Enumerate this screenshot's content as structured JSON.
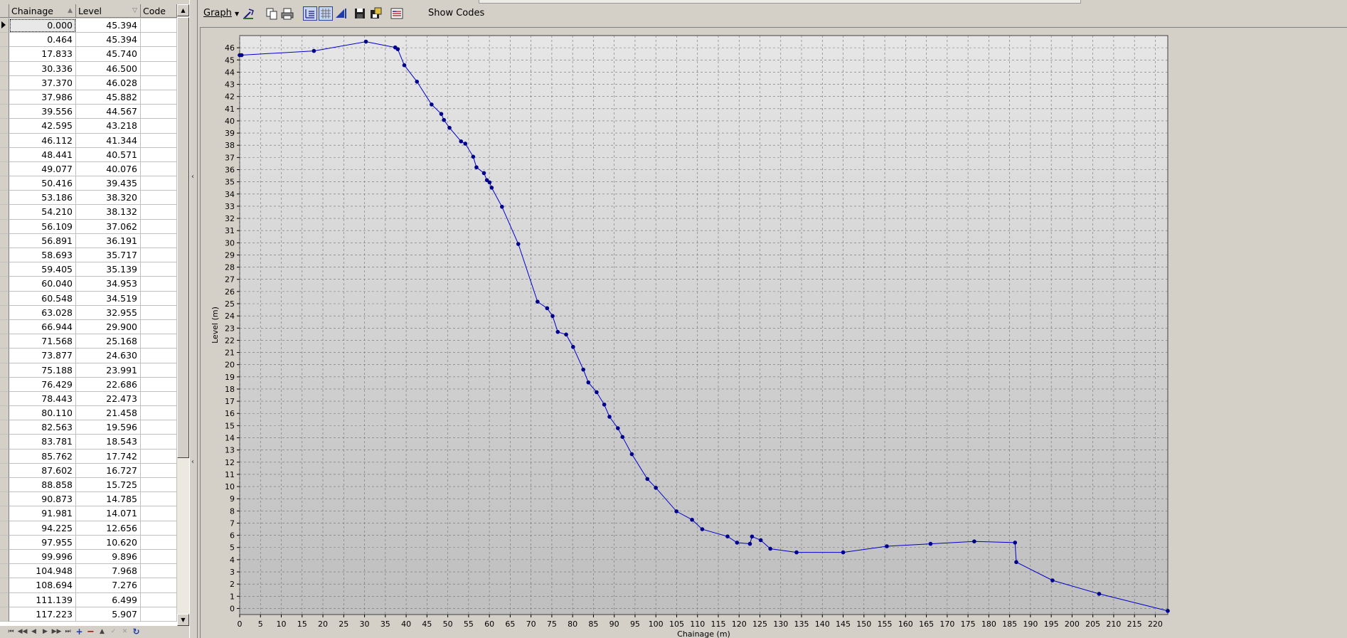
{
  "grid": {
    "columns": {
      "chainage": "Chainage",
      "level": "Level",
      "code": "Code"
    },
    "sort_glyphs": {
      "chainage": "▲",
      "level": "▽"
    },
    "rows": [
      {
        "chainage": "0.000",
        "level": "45.394",
        "code": ""
      },
      {
        "chainage": "0.464",
        "level": "45.394",
        "code": ""
      },
      {
        "chainage": "17.833",
        "level": "45.740",
        "code": ""
      },
      {
        "chainage": "30.336",
        "level": "46.500",
        "code": ""
      },
      {
        "chainage": "37.370",
        "level": "46.028",
        "code": ""
      },
      {
        "chainage": "37.986",
        "level": "45.882",
        "code": ""
      },
      {
        "chainage": "39.556",
        "level": "44.567",
        "code": ""
      },
      {
        "chainage": "42.595",
        "level": "43.218",
        "code": ""
      },
      {
        "chainage": "46.112",
        "level": "41.344",
        "code": ""
      },
      {
        "chainage": "48.441",
        "level": "40.571",
        "code": ""
      },
      {
        "chainage": "49.077",
        "level": "40.076",
        "code": ""
      },
      {
        "chainage": "50.416",
        "level": "39.435",
        "code": ""
      },
      {
        "chainage": "53.186",
        "level": "38.320",
        "code": ""
      },
      {
        "chainage": "54.210",
        "level": "38.132",
        "code": ""
      },
      {
        "chainage": "56.109",
        "level": "37.062",
        "code": ""
      },
      {
        "chainage": "56.891",
        "level": "36.191",
        "code": ""
      },
      {
        "chainage": "58.693",
        "level": "35.717",
        "code": ""
      },
      {
        "chainage": "59.405",
        "level": "35.139",
        "code": ""
      },
      {
        "chainage": "60.040",
        "level": "34.953",
        "code": ""
      },
      {
        "chainage": "60.548",
        "level": "34.519",
        "code": ""
      },
      {
        "chainage": "63.028",
        "level": "32.955",
        "code": ""
      },
      {
        "chainage": "66.944",
        "level": "29.900",
        "code": ""
      },
      {
        "chainage": "71.568",
        "level": "25.168",
        "code": ""
      },
      {
        "chainage": "73.877",
        "level": "24.630",
        "code": ""
      },
      {
        "chainage": "75.188",
        "level": "23.991",
        "code": ""
      },
      {
        "chainage": "76.429",
        "level": "22.686",
        "code": ""
      },
      {
        "chainage": "78.443",
        "level": "22.473",
        "code": ""
      },
      {
        "chainage": "80.110",
        "level": "21.458",
        "code": ""
      },
      {
        "chainage": "82.563",
        "level": "19.596",
        "code": ""
      },
      {
        "chainage": "83.781",
        "level": "18.543",
        "code": ""
      },
      {
        "chainage": "85.762",
        "level": "17.742",
        "code": ""
      },
      {
        "chainage": "87.602",
        "level": "16.727",
        "code": ""
      },
      {
        "chainage": "88.858",
        "level": "15.725",
        "code": ""
      },
      {
        "chainage": "90.873",
        "level": "14.785",
        "code": ""
      },
      {
        "chainage": "91.981",
        "level": "14.071",
        "code": ""
      },
      {
        "chainage": "94.225",
        "level": "12.656",
        "code": ""
      },
      {
        "chainage": "97.955",
        "level": "10.620",
        "code": ""
      },
      {
        "chainage": "99.996",
        "level": "9.896",
        "code": ""
      },
      {
        "chainage": "104.948",
        "level": "7.968",
        "code": ""
      },
      {
        "chainage": "108.694",
        "level": "7.276",
        "code": ""
      },
      {
        "chainage": "111.139",
        "level": "6.499",
        "code": ""
      },
      {
        "chainage": "117.223",
        "level": "5.907",
        "code": ""
      }
    ]
  },
  "toolbar": {
    "graph_label": "Graph",
    "show_codes_label": "Show Codes"
  },
  "nav_icons": [
    "first-icon",
    "prev-page-icon",
    "prev-icon",
    "next-icon",
    "next-page-icon",
    "last-icon",
    "add-icon",
    "delete-icon",
    "edit-icon",
    "post-icon",
    "cancel-icon",
    "refresh-icon"
  ],
  "colors": {
    "series": "#0000cc",
    "marker": "#00008b",
    "plot_bg_top": "#e6e6e6",
    "plot_bg_bottom": "#bfbfbf"
  },
  "chart_data": {
    "type": "line",
    "xlabel": "Chainage (m)",
    "ylabel": "Level (m)",
    "xlim": [
      0,
      223
    ],
    "ylim": [
      -0.5,
      47
    ],
    "x_ticks": [
      0,
      5,
      10,
      15,
      20,
      25,
      30,
      35,
      40,
      45,
      50,
      55,
      60,
      65,
      70,
      75,
      80,
      85,
      90,
      95,
      100,
      105,
      110,
      115,
      120,
      125,
      130,
      135,
      140,
      145,
      150,
      155,
      160,
      165,
      170,
      175,
      180,
      185,
      190,
      195,
      200,
      205,
      210,
      215,
      220
    ],
    "y_ticks": [
      0,
      1,
      2,
      3,
      4,
      5,
      6,
      7,
      8,
      9,
      10,
      11,
      12,
      13,
      14,
      15,
      16,
      17,
      18,
      19,
      20,
      21,
      22,
      23,
      24,
      25,
      26,
      27,
      28,
      29,
      30,
      31,
      32,
      33,
      34,
      35,
      36,
      37,
      38,
      39,
      40,
      41,
      42,
      43,
      44,
      45,
      46
    ],
    "grid": true,
    "series": [
      {
        "x": [
          0,
          0.464,
          17.833,
          30.336,
          37.37,
          37.986,
          39.556,
          42.595,
          46.112,
          48.441,
          49.077,
          50.416,
          53.186,
          54.21,
          56.109,
          56.891,
          58.693,
          59.405,
          60.04,
          60.548,
          63.028,
          66.944,
          71.568,
          73.877,
          75.188,
          76.429,
          78.443,
          80.11,
          82.563,
          83.781,
          85.762,
          87.602,
          88.858,
          90.873,
          91.981,
          94.225,
          97.955,
          99.996,
          104.948,
          108.694,
          111.139,
          117.223,
          119.5,
          122.6,
          123.1,
          125.2,
          127.5,
          133.8,
          145,
          155.5,
          166,
          176.5,
          186.3,
          186.6,
          195.3,
          206.5,
          223
        ],
        "y": [
          45.394,
          45.394,
          45.74,
          46.5,
          46.028,
          45.882,
          44.567,
          43.218,
          41.344,
          40.571,
          40.076,
          39.435,
          38.32,
          38.132,
          37.062,
          36.191,
          35.717,
          35.139,
          34.953,
          34.519,
          32.955,
          29.9,
          25.168,
          24.63,
          23.991,
          22.686,
          22.473,
          21.458,
          19.596,
          18.543,
          17.742,
          16.727,
          15.725,
          14.785,
          14.071,
          12.656,
          10.62,
          9.896,
          7.968,
          7.276,
          6.499,
          5.907,
          5.4,
          5.3,
          5.9,
          5.6,
          4.9,
          4.6,
          4.6,
          5.1,
          5.3,
          5.5,
          5.4,
          3.8,
          2.3,
          1.2,
          -0.2
        ]
      }
    ]
  }
}
